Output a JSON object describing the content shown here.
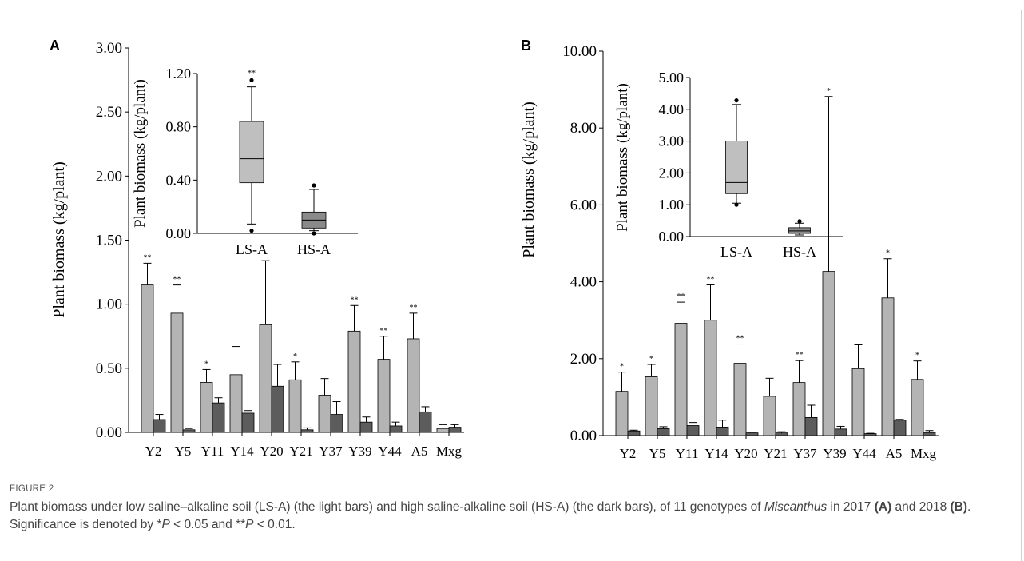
{
  "figure_label": "FIGURE 2",
  "caption": {
    "text_1": "Plant biomass under low saline–alkaline soil (LS-A) (the light bars) and high saline-alkaline soil (HS-A) (the dark bars), of 11 genotypes of ",
    "italic_1": "Miscanthus",
    "text_2": " in 2017 ",
    "bold_1": "(A)",
    "text_3": " and 2018 ",
    "bold_2": "(B)",
    "text_4": ". Significance is denoted by *",
    "italic_p1": "P",
    "text_5": " < 0.05 and **",
    "italic_p2": "P",
    "text_6": " < 0.01."
  },
  "colors": {
    "light": "#b4b4b4",
    "dark": "#5c5c5c",
    "box_light": "#bfbfbf",
    "box_dark": "#8a8a8a",
    "axis": "#000000"
  },
  "chart_data": [
    {
      "panel": "A",
      "type": "bar",
      "ylabel": "Plant biomass  (kg/plant)",
      "ylim": [
        0,
        3.0
      ],
      "yticks": [
        "0.00",
        "0.50",
        "1.00",
        "1.50",
        "2.00",
        "2.50",
        "3.00"
      ],
      "categories": [
        "Y2",
        "Y5",
        "Y11",
        "Y14",
        "Y20",
        "Y21",
        "Y37",
        "Y39",
        "Y44",
        "A5",
        "Mxg"
      ],
      "series": [
        {
          "name": "LS-A",
          "values": [
            1.15,
            0.93,
            0.39,
            0.45,
            0.84,
            0.41,
            0.29,
            0.79,
            0.57,
            0.73,
            0.03
          ],
          "errors": [
            0.17,
            0.22,
            0.1,
            0.22,
            0.5,
            0.14,
            0.13,
            0.2,
            0.18,
            0.2,
            0.03
          ]
        },
        {
          "name": "HS-A",
          "values": [
            0.1,
            0.02,
            0.23,
            0.15,
            0.36,
            0.02,
            0.14,
            0.08,
            0.05,
            0.16,
            0.04
          ],
          "errors": [
            0.04,
            0.01,
            0.04,
            0.02,
            0.17,
            0.015,
            0.1,
            0.04,
            0.03,
            0.04,
            0.02
          ]
        }
      ],
      "significance": [
        "**",
        "**",
        "*",
        "",
        "",
        "*",
        "",
        "**",
        "**",
        "**",
        ""
      ],
      "inset": {
        "type": "box",
        "ylabel": "Plant biomass (kg/plant)",
        "ylim": [
          0,
          1.2
        ],
        "yticks": [
          "0.00",
          "0.40",
          "0.80",
          "1.20"
        ],
        "categories": [
          "LS-A",
          "HS-A"
        ],
        "boxes": [
          {
            "name": "LS-A",
            "min": 0.07,
            "q1": 0.38,
            "median": 0.56,
            "q3": 0.84,
            "max": 1.1,
            "outliers": [
              0.02,
              1.15
            ],
            "sig": "**"
          },
          {
            "name": "HS-A",
            "min": 0.02,
            "q1": 0.04,
            "median": 0.1,
            "q3": 0.16,
            "max": 0.33,
            "outliers": [
              0.0,
              0.36
            ],
            "sig": ""
          }
        ]
      }
    },
    {
      "panel": "B",
      "type": "bar",
      "ylabel": "Plant biomass (kg/plant)",
      "ylim": [
        0,
        10.0
      ],
      "yticks": [
        "0.00",
        "2.00",
        "4.00",
        "6.00",
        "8.00",
        "10.00"
      ],
      "categories": [
        "Y2",
        "Y5",
        "Y11",
        "Y14",
        "Y20",
        "Y21",
        "Y37",
        "Y39",
        "Y44",
        "A5",
        "Mxg"
      ],
      "series": [
        {
          "name": "LS-A",
          "values": [
            1.15,
            1.53,
            2.92,
            3.0,
            1.88,
            1.02,
            1.38,
            4.27,
            1.74,
            3.58,
            1.46
          ],
          "errors": [
            0.5,
            0.32,
            0.55,
            0.92,
            0.5,
            0.47,
            0.57,
            4.55,
            0.62,
            1.02,
            0.48
          ]
        },
        {
          "name": "HS-A",
          "values": [
            0.12,
            0.18,
            0.26,
            0.22,
            0.07,
            0.07,
            0.47,
            0.17,
            0.05,
            0.4,
            0.08
          ],
          "errors": [
            0.02,
            0.05,
            0.08,
            0.18,
            0.02,
            0.03,
            0.32,
            0.07,
            0.01,
            0.02,
            0.05
          ]
        }
      ],
      "significance": [
        "*",
        "*",
        "**",
        "**",
        "**",
        "",
        "**",
        "*",
        "",
        "*",
        "*"
      ],
      "inset": {
        "type": "box",
        "ylabel": "Plant biomass (kg/plant)",
        "ylim": [
          0,
          5.0
        ],
        "yticks": [
          "0.00",
          "1.00",
          "2.00",
          "3.00",
          "4.00",
          "5.00"
        ],
        "categories": [
          "LS-A",
          "HS-A"
        ],
        "boxes": [
          {
            "name": "LS-A",
            "min": 1.05,
            "q1": 1.35,
            "median": 1.7,
            "q3": 3.0,
            "max": 4.15,
            "outliers": [
              1.0,
              4.28
            ],
            "sig": ""
          },
          {
            "name": "HS-A",
            "min": 0.05,
            "q1": 0.1,
            "median": 0.18,
            "q3": 0.28,
            "max": 0.42,
            "outliers": [
              0.48
            ],
            "sig": ""
          }
        ]
      }
    }
  ]
}
